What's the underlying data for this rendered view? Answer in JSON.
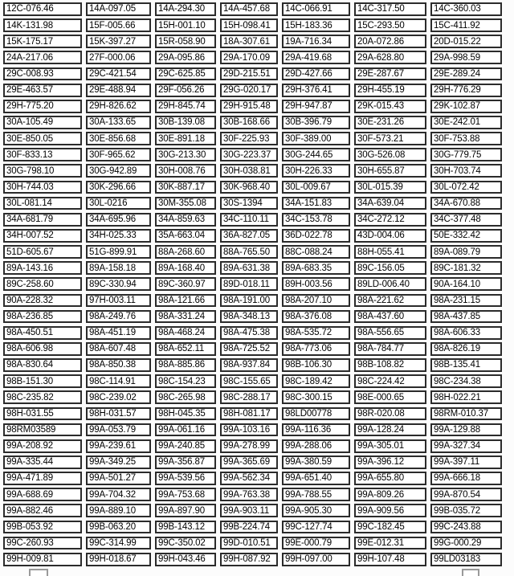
{
  "table": {
    "column_count": 7,
    "row_count": 35,
    "rows": [
      [
        "12C-076.46",
        "14A-097.05",
        "14A-294.30",
        "14A-457.68",
        "14C-066.91",
        "14C-317.50",
        "14C-360.03"
      ],
      [
        "14K-131.98",
        "15F-005.66",
        "15H-001.10",
        "15H-098.41",
        "15H-183.36",
        "15C-293.50",
        "15C-411.92"
      ],
      [
        "15K-175.17",
        "15K-397.27",
        "15R-058.90",
        "18A-307.61",
        "19A-716.34",
        "20A-072.86",
        "20D-015.22"
      ],
      [
        "24A-217.06",
        "27F-000.06",
        "29A-095.86",
        "29A-170.09",
        "29A-419.68",
        "29A-628.80",
        "29A-998.59"
      ],
      [
        "29C-008.93",
        "29C-421.54",
        "29C-625.85",
        "29D-215.51",
        "29D-427.66",
        "29E-287.67",
        "29E-289.24"
      ],
      [
        "29E-463.57",
        "29E-488.94",
        "29F-056.26",
        "29G-020.17",
        "29H-376.41",
        "29H-455.19",
        "29H-776.29"
      ],
      [
        "29H-775.20",
        "29H-826.62",
        "29H-845.74",
        "29H-915.48",
        "29H-947.87",
        "29K-015.43",
        "29K-102.87"
      ],
      [
        "30A-105.49",
        "30A-133.65",
        "30B-139.08",
        "30B-168.66",
        "30B-396.79",
        "30E-231.26",
        "30E-242.01"
      ],
      [
        "30E-850.05",
        "30E-856.68",
        "30E-891.18",
        "30F-225.93",
        "30F-389.00",
        "30F-573.21",
        "30F-753.88"
      ],
      [
        "30F-833.13",
        "30F-965.62",
        "30G-213.30",
        "30G-223.37",
        "30G-244.65",
        "30G-526.08",
        "30G-779.75"
      ],
      [
        "30G-798.10",
        "30G-942.89",
        "30H-008.76",
        "30H-038.81",
        "30H-226.33",
        "30H-655.87",
        "30H-703.74"
      ],
      [
        "30H-744.03",
        "30K-296.66",
        "30K-887.17",
        "30K-968.40",
        "30L-009.67",
        "30L-015.39",
        "30L-072.42"
      ],
      [
        "30L-081.14",
        "30L-0216",
        "30M-355.08",
        "30S-1394",
        "34A-151.83",
        "34A-639.04",
        "34A-670.88"
      ],
      [
        "34A-681.79",
        "34A-695.96",
        "34A-859.63",
        "34C-110.11",
        "34C-153.78",
        "34C-272.12",
        "34C-377.48"
      ],
      [
        "34H-007.52",
        "34H-025.33",
        "35A-663.04",
        "36A-827.05",
        "36D-022.78",
        "43D-004.06",
        "50E-332.42"
      ],
      [
        "51D-605.67",
        "51G-899.91",
        "88A-268.60",
        "88A-765.50",
        "88C-088.24",
        "88H-055.41",
        "89A-089.79"
      ],
      [
        "89A-143.16",
        "89A-158.18",
        "89A-168.40",
        "89A-631.38",
        "89A-683.35",
        "89C-156.05",
        "89C-181.32"
      ],
      [
        "89C-258.60",
        "89C-330.94",
        "89C-360.97",
        "89D-018.11",
        "89H-003.56",
        "89LD-006.40",
        "90A-164.10"
      ],
      [
        "90A-228.32",
        "97H-003.11",
        "98A-121.66",
        "98A-191.00",
        "98A-207.10",
        "98A-221.62",
        "98A-231.15"
      ],
      [
        "98A-236.85",
        "98A-249.76",
        "98A-331.24",
        "98A-348.13",
        "98A-376.08",
        "98A-437.60",
        "98A-437.85"
      ],
      [
        "98A-450.51",
        "98A-451.19",
        "98A-468.24",
        "98A-475.38",
        "98A-535.72",
        "98A-556.65",
        "98A-606.33"
      ],
      [
        "98A-606.98",
        "98A-607.48",
        "98A-652.11",
        "98A-725.52",
        "98A-773.06",
        "98A-784.77",
        "98A-826.19"
      ],
      [
        "98A-830.64",
        "98A-850.38",
        "98A-885.86",
        "98A-937.84",
        "98B-106.30",
        "98B-108.82",
        "98B-135.41"
      ],
      [
        "98B-151.30",
        "98C-114.91",
        "98C-154.23",
        "98C-155.65",
        "98C-189.42",
        "98C-224.42",
        "98C-234.38"
      ],
      [
        "98C-235.82",
        "98C-239.02",
        "98C-265.98",
        "98C-288.17",
        "98C-300.15",
        "98E-000.65",
        "98H-022.21"
      ],
      [
        "98H-031.55",
        "98H-031.57",
        "98H-045.35",
        "98H-081.17",
        "98LD00778",
        "98R-020.08",
        "98RM-010.37"
      ],
      [
        "98RM03589",
        "99A-053.79",
        "99A-061.16",
        "99A-103.16",
        "99A-116.36",
        "99A-128.24",
        "99A-129.88"
      ],
      [
        "99A-208.92",
        "99A-239.61",
        "99A-240.85",
        "99A-278.99",
        "99A-288.06",
        "99A-305.01",
        "99A-327.34"
      ],
      [
        "99A-335.44",
        "99A-349.25",
        "99A-356.87",
        "99A-365.69",
        "99A-380.59",
        "99A-396.12",
        "99A-397.11"
      ],
      [
        "99A-471.89",
        "99A-501.27",
        "99A-539.56",
        "99A-562.34",
        "99A-651.40",
        "99A-655.80",
        "99A-666.18"
      ],
      [
        "99A-688.69",
        "99A-704.32",
        "99A-753.68",
        "99A-763.38",
        "99A-788.55",
        "99A-809.26",
        "99A-870.54"
      ],
      [
        "99A-882.46",
        "99A-889.10",
        "99A-897.90",
        "99A-903.11",
        "99A-905.30",
        "99A-909.56",
        "99B-035.72"
      ],
      [
        "99B-053.92",
        "99B-063.20",
        "99B-143.12",
        "99B-224.74",
        "99C-127.74",
        "99C-182.45",
        "99C-243.88"
      ],
      [
        "99C-260.93",
        "99C-314.99",
        "99C-350.02",
        "99D-010.51",
        "99E-000.79",
        "99E-012.31",
        "99G-000.29"
      ],
      [
        "99H-009.81",
        "99H-018.67",
        "99H-043.46",
        "99H-087.92",
        "99H-097.00",
        "99H-107.48",
        "99LD03183"
      ]
    ]
  },
  "colors": {
    "page_bg": "#fcfcfc",
    "cell_bg": "#ffffff",
    "cell_border": "#2b2b2b",
    "text": "#000000",
    "partial_border": "#9a9a9a"
  }
}
